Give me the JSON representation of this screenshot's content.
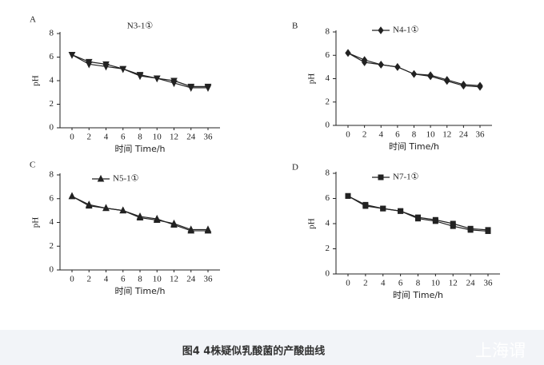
{
  "chart_data": [
    {
      "type": "line",
      "label": "A",
      "title": "N3-1①",
      "marker": "tri-down",
      "categories": [
        0,
        2,
        4,
        6,
        8,
        10,
        12,
        24,
        36
      ],
      "x_label": "时间  Time/h",
      "y_label": "pH",
      "ylim": [
        0,
        8
      ],
      "yticks": [
        0,
        2,
        4,
        6,
        8
      ],
      "color": "#222222",
      "series": [
        {
          "values": [
            6.2,
            5.6,
            5.4,
            5.0,
            4.4,
            4.2,
            4.0,
            3.5,
            3.5
          ]
        },
        {
          "values": [
            6.2,
            5.4,
            5.2,
            5.0,
            4.5,
            4.2,
            3.8,
            3.4,
            3.4
          ]
        }
      ]
    },
    {
      "type": "line",
      "label": "B",
      "marker": "diamond",
      "categories": [
        0,
        2,
        4,
        6,
        8,
        10,
        12,
        24,
        36
      ],
      "x_label": "时间  Time/h",
      "y_label": "pH",
      "ylim": [
        0,
        8
      ],
      "yticks": [
        0,
        2,
        4,
        6,
        8
      ],
      "color": "#222222",
      "series": [
        {
          "name": "N4-1①",
          "values": [
            6.2,
            5.6,
            5.2,
            5.0,
            4.4,
            4.3,
            3.9,
            3.5,
            3.4
          ]
        },
        {
          "values": [
            6.2,
            5.4,
            5.2,
            5.0,
            4.4,
            4.2,
            3.8,
            3.4,
            3.3
          ]
        }
      ]
    },
    {
      "type": "line",
      "label": "C",
      "marker": "tri-up",
      "categories": [
        0,
        2,
        4,
        6,
        8,
        10,
        12,
        24,
        36
      ],
      "x_label": "时间  Time/h",
      "y_label": "pH",
      "ylim": [
        0,
        8
      ],
      "yticks": [
        0,
        2,
        4,
        6,
        8
      ],
      "color": "#222222",
      "series": [
        {
          "name": "N5-1①",
          "values": [
            6.2,
            5.5,
            5.2,
            5.0,
            4.4,
            4.2,
            3.9,
            3.4,
            3.4
          ]
        },
        {
          "values": [
            6.2,
            5.4,
            5.2,
            5.0,
            4.5,
            4.3,
            3.8,
            3.3,
            3.3
          ]
        }
      ]
    },
    {
      "type": "line",
      "label": "D",
      "marker": "square",
      "categories": [
        0,
        2,
        4,
        6,
        8,
        10,
        12,
        24,
        36
      ],
      "x_label": "时间  Time/h",
      "y_label": "pH",
      "ylim": [
        0,
        8
      ],
      "yticks": [
        0,
        2,
        4,
        6,
        8
      ],
      "color": "#222222",
      "series": [
        {
          "name": "N7-1①",
          "values": [
            6.2,
            5.5,
            5.2,
            5.0,
            4.5,
            4.3,
            4.0,
            3.6,
            3.5
          ]
        },
        {
          "values": [
            6.2,
            5.4,
            5.2,
            5.0,
            4.4,
            4.2,
            3.8,
            3.5,
            3.4
          ]
        }
      ]
    }
  ],
  "caption": "图4 4株疑似乳酸菌的产酸曲线",
  "watermark": "上海谓"
}
